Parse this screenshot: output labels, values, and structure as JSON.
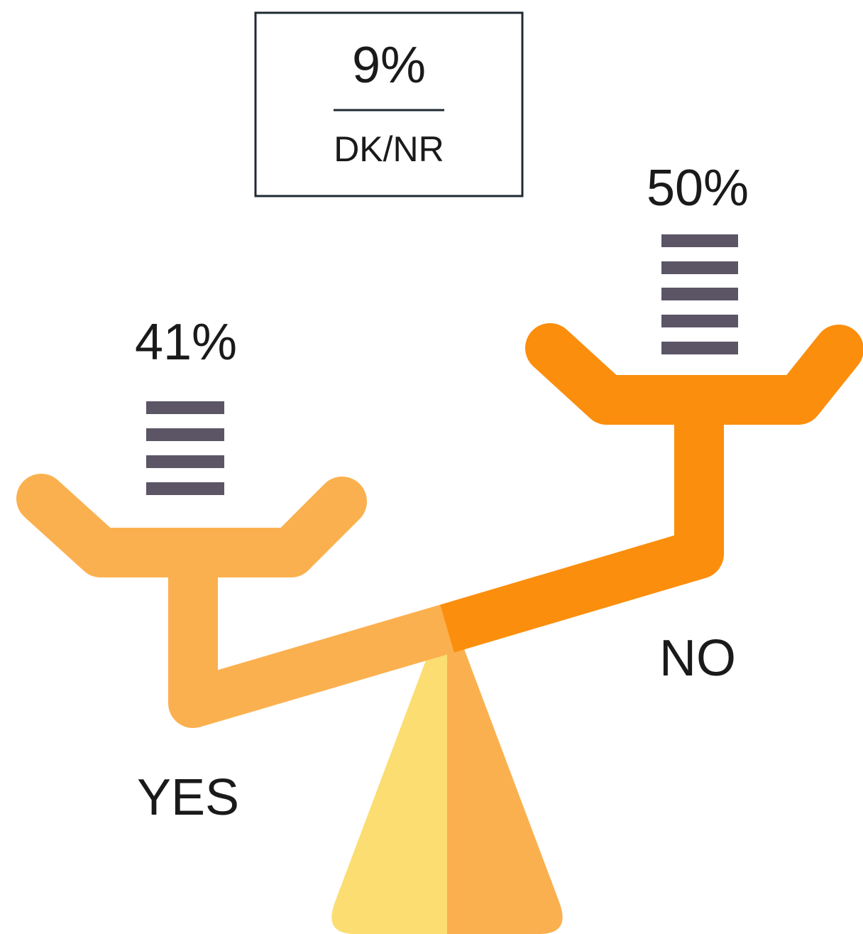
{
  "dk_nr": {
    "value": "9%",
    "label": "DK/NR"
  },
  "yes": {
    "value": "41%",
    "label": "YES"
  },
  "no": {
    "value": "50%",
    "label": "NO"
  }
}
